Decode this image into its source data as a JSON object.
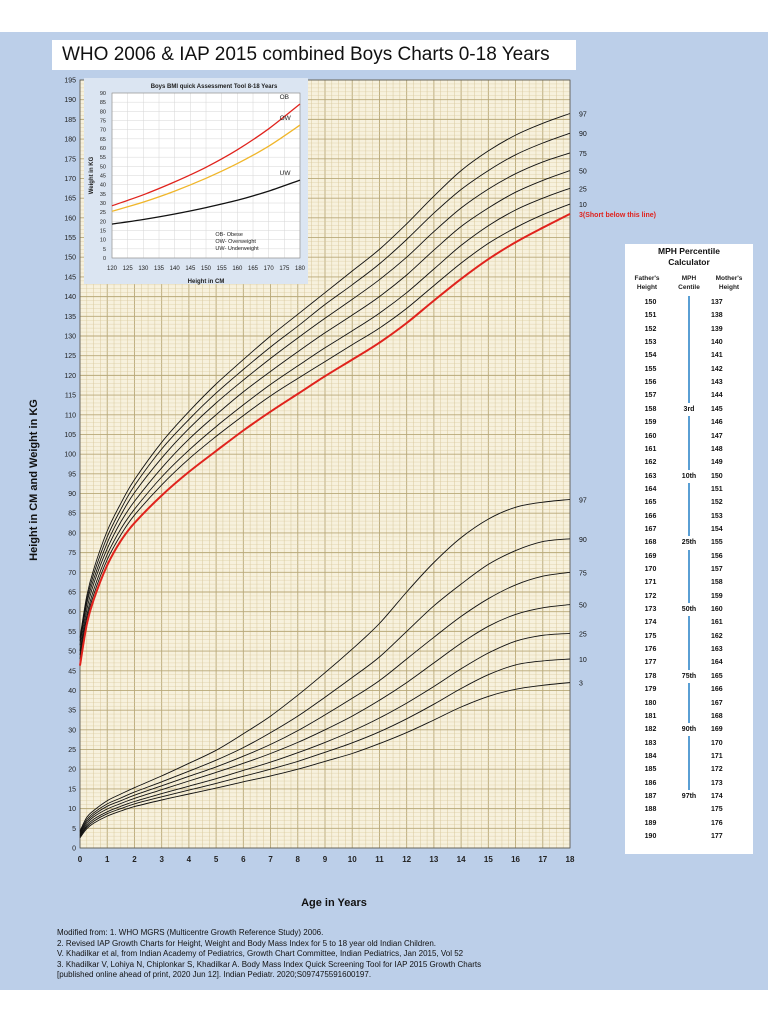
{
  "title": "WHO 2006 & IAP 2015 combined Boys Charts 0-18 Years",
  "chart_data": [
    {
      "type": "line",
      "name_in_image": "main growth chart",
      "xlabel": "Age in Years",
      "ylabel": "Height in CM and Weight in KG",
      "xlim": [
        0,
        18
      ],
      "ylim": [
        0,
        195
      ],
      "x_ticks": [
        "0",
        "1",
        "2",
        "3",
        "4",
        "5",
        "6",
        "7",
        "8",
        "9",
        "10",
        "11",
        "12",
        "13",
        "14",
        "15",
        "16",
        "17",
        "18"
      ],
      "y_ticks": [
        "0",
        "5",
        "10",
        "15",
        "20",
        "25",
        "30",
        "35",
        "40",
        "45",
        "50",
        "55",
        "60",
        "65",
        "70",
        "75",
        "80",
        "85",
        "90",
        "95",
        "100",
        "105",
        "110",
        "115",
        "120",
        "125",
        "130",
        "135",
        "140",
        "145",
        "150",
        "155",
        "160",
        "165",
        "170",
        "175",
        "180",
        "185",
        "190",
        "195"
      ],
      "grid": true,
      "colors": {
        "grid": "#d8c89c",
        "curve": "#111111",
        "highlight": "#e0231d"
      },
      "x": [
        0,
        0.25,
        0.5,
        1,
        1.5,
        2,
        3,
        4,
        5,
        6,
        7,
        8,
        9,
        10,
        11,
        12,
        13,
        14,
        15,
        16,
        17,
        18
      ],
      "height_series": [
        {
          "name": "97",
          "values": [
            53.4,
            64.0,
            70.7,
            80.5,
            87.5,
            93.5,
            103.0,
            110.8,
            117.8,
            124.0,
            130.0,
            135.5,
            141.0,
            146.5,
            152.0,
            158.5,
            165.5,
            172.0,
            177.0,
            181.0,
            184.0,
            186.5
          ]
        },
        {
          "name": "90",
          "values": [
            52.6,
            63.0,
            69.5,
            79.0,
            86.0,
            92.0,
            101.3,
            108.8,
            115.5,
            121.5,
            127.2,
            132.5,
            138.0,
            143.0,
            148.3,
            154.5,
            161.2,
            167.2,
            172.0,
            176.0,
            179.0,
            181.5
          ]
        },
        {
          "name": "75",
          "values": [
            51.5,
            62.0,
            68.2,
            77.5,
            84.5,
            90.2,
            99.0,
            106.5,
            113.0,
            118.8,
            124.3,
            129.5,
            134.5,
            139.3,
            144.3,
            150.0,
            156.5,
            162.5,
            167.3,
            171.2,
            174.2,
            176.5
          ]
        },
        {
          "name": "50",
          "values": [
            50.0,
            60.5,
            67.0,
            76.0,
            82.8,
            88.0,
            96.5,
            103.8,
            110.0,
            115.8,
            121.0,
            126.0,
            130.8,
            135.3,
            140.0,
            145.5,
            151.8,
            157.8,
            162.5,
            166.5,
            169.5,
            172.0
          ]
        },
        {
          "name": "25",
          "values": [
            49.0,
            59.0,
            65.5,
            74.5,
            81.0,
            86.0,
            94.2,
            101.0,
            107.0,
            112.5,
            117.7,
            122.4,
            127.0,
            131.3,
            135.8,
            141.0,
            147.0,
            153.0,
            158.0,
            162.0,
            165.0,
            167.5
          ]
        },
        {
          "name": "10",
          "values": [
            48.0,
            58.0,
            64.3,
            73.2,
            79.5,
            84.5,
            92.2,
            98.8,
            104.5,
            109.8,
            114.8,
            119.2,
            123.5,
            127.8,
            132.0,
            137.0,
            142.8,
            148.5,
            153.5,
            157.5,
            160.8,
            163.5
          ]
        },
        {
          "name": "3(Short below this line)",
          "values": [
            46.3,
            56.8,
            63.0,
            71.8,
            78.0,
            82.5,
            89.5,
            95.5,
            100.8,
            106.0,
            110.8,
            115.3,
            119.8,
            124.0,
            128.3,
            133.3,
            139.0,
            144.5,
            149.5,
            153.8,
            157.5,
            161.0
          ]
        }
      ],
      "weight_series": [
        {
          "name": "97",
          "values": [
            4.3,
            7.8,
            9.5,
            12.0,
            13.7,
            15.3,
            18.3,
            21.5,
            24.8,
            29.0,
            33.5,
            38.8,
            44.5,
            50.5,
            57.0,
            65.0,
            72.5,
            78.8,
            83.5,
            86.5,
            87.8,
            88.5
          ]
        },
        {
          "name": "90",
          "values": [
            4.0,
            7.2,
            8.9,
            11.2,
            12.7,
            14.2,
            16.8,
            19.5,
            22.3,
            25.5,
            29.3,
            33.5,
            38.3,
            43.3,
            48.5,
            55.0,
            61.5,
            67.0,
            72.0,
            75.5,
            77.8,
            78.5
          ]
        },
        {
          "name": "75",
          "values": [
            3.7,
            6.7,
            8.4,
            10.6,
            12.0,
            13.4,
            15.8,
            18.2,
            20.6,
            23.3,
            26.3,
            29.8,
            33.8,
            38.0,
            42.5,
            48.0,
            53.5,
            58.8,
            63.3,
            66.8,
            69.0,
            70.0
          ]
        },
        {
          "name": "50",
          "values": [
            3.4,
            6.2,
            7.9,
            9.9,
            11.3,
            12.6,
            14.8,
            17.0,
            19.2,
            21.5,
            24.0,
            26.8,
            30.0,
            33.5,
            37.5,
            42.0,
            47.0,
            52.0,
            56.3,
            59.3,
            61.0,
            61.8
          ]
        },
        {
          "name": "25",
          "values": [
            3.1,
            5.7,
            7.3,
            9.2,
            10.6,
            11.8,
            13.8,
            15.7,
            17.6,
            19.7,
            21.8,
            24.2,
            26.8,
            29.7,
            33.0,
            36.8,
            41.0,
            45.5,
            49.5,
            52.5,
            54.0,
            54.5
          ]
        },
        {
          "name": "10",
          "values": [
            2.9,
            5.3,
            6.8,
            8.7,
            10.0,
            11.2,
            13.0,
            14.7,
            16.4,
            18.2,
            20.0,
            22.0,
            24.3,
            26.7,
            29.5,
            32.8,
            36.5,
            40.5,
            44.0,
            46.5,
            47.5,
            48.0
          ]
        },
        {
          "name": "3",
          "values": [
            2.6,
            4.9,
            6.3,
            8.1,
            9.4,
            10.5,
            12.2,
            13.7,
            15.2,
            16.8,
            18.3,
            20.0,
            22.0,
            24.0,
            26.5,
            29.3,
            32.5,
            35.8,
            38.5,
            40.3,
            41.3,
            42.0
          ]
        }
      ]
    },
    {
      "type": "line",
      "name_in_image": "inset",
      "title": "Boys BMI quick Assessment Tool 8-18 Years",
      "xlabel": "Height in CM",
      "ylabel": "Weight in KG",
      "xlim": [
        120,
        180
      ],
      "ylim": [
        0,
        90
      ],
      "x_ticks": [
        "120",
        "125",
        "130",
        "135",
        "140",
        "145",
        "150",
        "155",
        "160",
        "165",
        "170",
        "175",
        "180"
      ],
      "y_ticks": [
        "0",
        "5",
        "10",
        "15",
        "20",
        "25",
        "30",
        "35",
        "40",
        "45",
        "50",
        "55",
        "60",
        "65",
        "70",
        "75",
        "80",
        "85",
        "90"
      ],
      "grid": true,
      "x": [
        120,
        130,
        140,
        150,
        160,
        170,
        180
      ],
      "series": [
        {
          "name": "OB",
          "color": "#e0231d",
          "values": [
            28.5,
            34.5,
            41.5,
            49.5,
            59.0,
            70.5,
            84.0
          ]
        },
        {
          "name": "OW",
          "color": "#f0b62a",
          "values": [
            25.5,
            30.5,
            36.5,
            43.5,
            51.5,
            61.0,
            72.5
          ]
        },
        {
          "name": "UW",
          "color": "#111111",
          "values": [
            18.5,
            21.0,
            24.0,
            27.5,
            31.5,
            36.5,
            42.5
          ]
        }
      ],
      "legend": [
        "OB- Obese",
        "OW- Overweight",
        "UW- Underweight"
      ]
    }
  ],
  "mph": {
    "title_line1": "MPH  Percentile",
    "title_line2": "Calculator",
    "head_father_1": "Father's",
    "head_father_2": "Height",
    "head_centile_1": "MPH",
    "head_centile_2": "Centile",
    "head_mother_1": "Mother's",
    "head_mother_2": "Height",
    "rows": [
      {
        "father": "150",
        "centile": "",
        "mother": "137"
      },
      {
        "father": "151",
        "centile": "",
        "mother": "138"
      },
      {
        "father": "152",
        "centile": "",
        "mother": "139"
      },
      {
        "father": "153",
        "centile": "",
        "mother": "140"
      },
      {
        "father": "154",
        "centile": "",
        "mother": "141"
      },
      {
        "father": "155",
        "centile": "",
        "mother": "142"
      },
      {
        "father": "156",
        "centile": "",
        "mother": "143"
      },
      {
        "father": "157",
        "centile": "",
        "mother": "144"
      },
      {
        "father": "158",
        "centile": "3rd",
        "mother": "145"
      },
      {
        "father": "159",
        "centile": "",
        "mother": "146"
      },
      {
        "father": "160",
        "centile": "",
        "mother": "147"
      },
      {
        "father": "161",
        "centile": "",
        "mother": "148"
      },
      {
        "father": "162",
        "centile": "",
        "mother": "149"
      },
      {
        "father": "163",
        "centile": "10th",
        "mother": "150"
      },
      {
        "father": "164",
        "centile": "",
        "mother": "151"
      },
      {
        "father": "165",
        "centile": "",
        "mother": "152"
      },
      {
        "father": "166",
        "centile": "",
        "mother": "153"
      },
      {
        "father": "167",
        "centile": "",
        "mother": "154"
      },
      {
        "father": "168",
        "centile": "25th",
        "mother": "155"
      },
      {
        "father": "169",
        "centile": "",
        "mother": "156"
      },
      {
        "father": "170",
        "centile": "",
        "mother": "157"
      },
      {
        "father": "171",
        "centile": "",
        "mother": "158"
      },
      {
        "father": "172",
        "centile": "",
        "mother": "159"
      },
      {
        "father": "173",
        "centile": "50th",
        "mother": "160"
      },
      {
        "father": "174",
        "centile": "",
        "mother": "161"
      },
      {
        "father": "175",
        "centile": "",
        "mother": "162"
      },
      {
        "father": "176",
        "centile": "",
        "mother": "163"
      },
      {
        "father": "177",
        "centile": "",
        "mother": "164"
      },
      {
        "father": "178",
        "centile": "75th",
        "mother": "165"
      },
      {
        "father": "179",
        "centile": "",
        "mother": "166"
      },
      {
        "father": "180",
        "centile": "",
        "mother": "167"
      },
      {
        "father": "181",
        "centile": "",
        "mother": "168"
      },
      {
        "father": "182",
        "centile": "90th",
        "mother": "169"
      },
      {
        "father": "183",
        "centile": "",
        "mother": "170"
      },
      {
        "father": "184",
        "centile": "",
        "mother": "171"
      },
      {
        "father": "185",
        "centile": "",
        "mother": "172"
      },
      {
        "father": "186",
        "centile": "",
        "mother": "173"
      },
      {
        "father": "187",
        "centile": "97th",
        "mother": "174"
      },
      {
        "father": "188",
        "centile": "",
        "mother": "175"
      },
      {
        "father": "189",
        "centile": "",
        "mother": "176"
      },
      {
        "father": "190",
        "centile": "",
        "mother": "177"
      }
    ]
  },
  "references": [
    "Modified from: 1. WHO MGRS (Multicentre Growth Reference Study) 2006.",
    "2. Revised IAP Growth Charts for Height, Weight and Body Mass Index for 5 to 18 year old Indian Children.",
    "V. Khadilkar et al, from Indian Academy of Pediatrics, Growth Chart Committee, Indian Pediatrics, Jan 2015, Vol 52",
    "3. Khadilkar V, Lohiya N, Chiplonkar S, Khadilkar A. Body Mass Index Quick Screening Tool for IAP 2015 Growth Charts",
    "[published online ahead of print, 2020 Jun 12]. Indian Pediatr. 2020;S097475591600197."
  ]
}
